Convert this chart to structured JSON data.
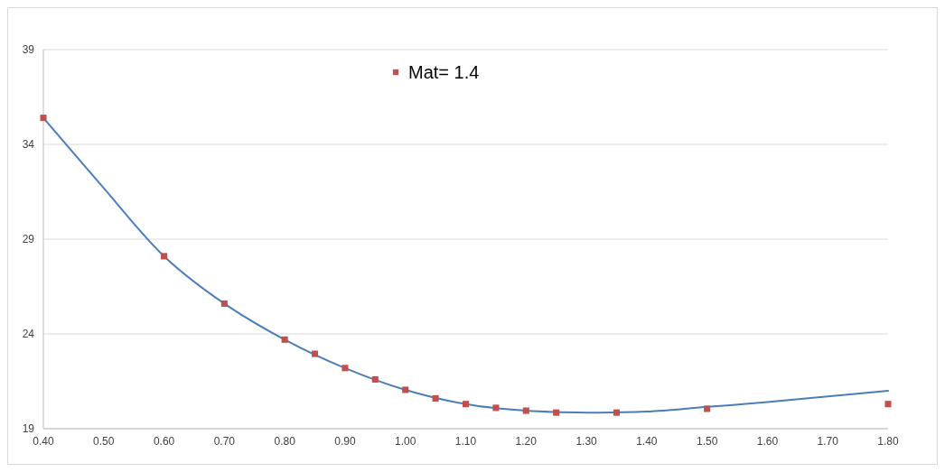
{
  "chart_data": {
    "type": "scatter",
    "xlim": [
      0.4,
      1.8
    ],
    "ylim": [
      19,
      39
    ],
    "xticks": [
      {
        "value": 0.4,
        "label": "0.40"
      },
      {
        "value": 0.5,
        "label": "0.50"
      },
      {
        "value": 0.6,
        "label": "0.60"
      },
      {
        "value": 0.7,
        "label": "0.70"
      },
      {
        "value": 0.8,
        "label": "0.80"
      },
      {
        "value": 0.9,
        "label": "0.90"
      },
      {
        "value": 1.0,
        "label": "1.00"
      },
      {
        "value": 1.1,
        "label": "1.10"
      },
      {
        "value": 1.2,
        "label": "1.20"
      },
      {
        "value": 1.3,
        "label": "1.30"
      },
      {
        "value": 1.4,
        "label": "1.40"
      },
      {
        "value": 1.5,
        "label": "1.50"
      },
      {
        "value": 1.6,
        "label": "1.60"
      },
      {
        "value": 1.7,
        "label": "1.70"
      },
      {
        "value": 1.8,
        "label": "1.80"
      }
    ],
    "yticks": [
      19,
      24,
      29,
      34,
      39
    ],
    "grid": "y",
    "legend": "top",
    "series": [
      {
        "name": "Mat= 1.4",
        "marker": "square",
        "color": "#c0504d",
        "x": [
          0.4,
          0.6,
          0.7,
          0.8,
          0.85,
          0.9,
          0.95,
          1.0,
          1.05,
          1.1,
          1.15,
          1.2,
          1.25,
          1.35,
          1.5,
          1.8
        ],
        "values": [
          35.4,
          28.1,
          25.6,
          23.7,
          22.95,
          22.2,
          21.6,
          21.05,
          20.6,
          20.3,
          20.1,
          19.95,
          19.85,
          19.85,
          20.05,
          20.3
        ]
      },
      {
        "type": "line",
        "color": "#4a7ebb",
        "x": [
          0.4,
          0.5,
          0.6,
          0.7,
          0.8,
          0.9,
          1.0,
          1.1,
          1.2,
          1.3,
          1.4,
          1.5,
          1.6,
          1.7,
          1.8
        ],
        "values": [
          35.4,
          31.7,
          28.1,
          25.6,
          23.7,
          22.2,
          21.05,
          20.3,
          19.95,
          19.85,
          19.9,
          20.15,
          20.4,
          20.7,
          21.0
        ]
      }
    ]
  }
}
